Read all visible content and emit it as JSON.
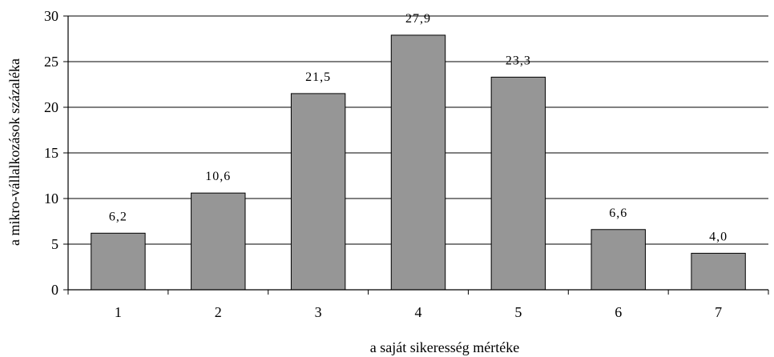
{
  "chart_data": {
    "type": "bar",
    "categories": [
      "1",
      "2",
      "3",
      "4",
      "5",
      "6",
      "7"
    ],
    "values": [
      6.2,
      10.6,
      21.5,
      27.9,
      23.3,
      6.6,
      4.0
    ],
    "value_labels": [
      "6,2",
      "10,6",
      "21,5",
      "27,9",
      "23,3",
      "6,6",
      "4,0"
    ],
    "y_ticks": [
      "0",
      "5",
      "10",
      "15",
      "20",
      "25",
      "30"
    ],
    "xlabel": "a saját sikeresség mértéke",
    "ylabel": "a mikro-vállalkozások százaléka",
    "ylim": [
      0,
      30
    ],
    "grid": true,
    "bar_color": "#969696",
    "bar_edge_color": "#000000"
  }
}
